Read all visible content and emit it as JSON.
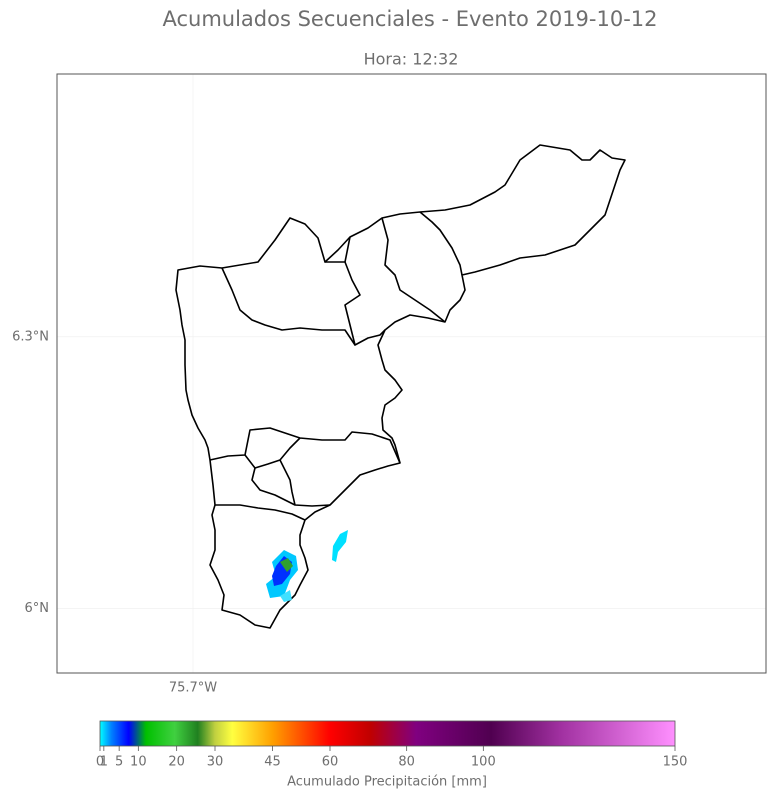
{
  "chart_data": {
    "type": "map",
    "title": "Acumulados Secuenciales - Evento 2019-10-12",
    "subtitle": "Hora: 12:32",
    "xlim": [
      -75.85,
      -75.068
    ],
    "ylim": [
      5.929,
      6.59
    ],
    "xticks": [
      {
        "value": -75.7,
        "label": "75.7°W"
      }
    ],
    "yticks": [
      {
        "value": 6.3,
        "label": "6.3°N"
      },
      {
        "value": 6,
        "label": "6°N"
      }
    ],
    "grid": true,
    "colorbar": {
      "label": "Acumulado Precipitación [mm]",
      "lim": [
        0,
        150
      ],
      "ticks": [
        0,
        1,
        5,
        10,
        20,
        30,
        45,
        60,
        80,
        100,
        150
      ]
    }
  }
}
